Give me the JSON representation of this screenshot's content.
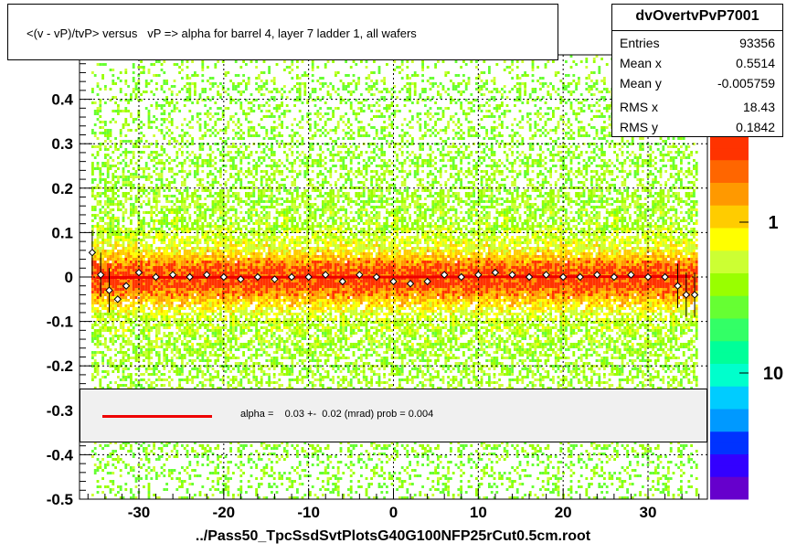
{
  "title": "<(v - vP)/tvP> versus   vP => alpha for barrel 4, layer 7 ladder 1, all wafers",
  "stats": {
    "name": "dvOvertvPvP7001",
    "rows": [
      {
        "key": "Entries",
        "value": "93356"
      },
      {
        "key": "Mean x",
        "value": "0.5514"
      },
      {
        "key": "Mean y",
        "value": "-0.005759"
      },
      {
        "key": "RMS x",
        "value": "18.43"
      },
      {
        "key": "RMS y",
        "value": "0.1842"
      }
    ]
  },
  "legend": {
    "fit_text": "alpha =    0.03 +-  0.02 (mrad) prob = 0.004",
    "line_color": "#ee0000"
  },
  "file_label": "../Pass50_TpcSsdSvtPlotsG40G100NFP25rCut0.5cm.root",
  "colors": {
    "palette_low_to_high": [
      "#6600cc",
      "#3300ff",
      "#0033ff",
      "#0099ff",
      "#00ccff",
      "#00ffcc",
      "#00ff99",
      "#33ff66",
      "#66ff33",
      "#99ff00",
      "#ccff33",
      "#ffff00",
      "#ffcc00",
      "#ff9900",
      "#ff6600",
      "#ff3300"
    ],
    "fit_line": "#ee0000"
  },
  "chart_data": {
    "type": "heatmap",
    "title": "<(v - vP)/tvP> versus   vP => alpha for barrel 4, layer 7 ladder 1, all wafers",
    "xlabel": "",
    "ylabel": "",
    "xlim": [
      -37,
      37
    ],
    "ylim": [
      -0.5,
      0.5
    ],
    "x_ticks": [
      -30,
      -20,
      -10,
      0,
      10,
      20,
      30
    ],
    "y_ticks": [
      -0.5,
      -0.4,
      -0.3,
      -0.2,
      -0.1,
      0,
      0.1,
      0.2,
      0.3,
      0.4
    ],
    "y_tick_labels": [
      "-0.5",
      "-0.4",
      "-0.3",
      "-0.2",
      "-0.1",
      "0",
      "0.1",
      "0.2",
      "0.3",
      "0.4"
    ],
    "z_scale": "log",
    "z_tick_labels": [
      "1",
      "10"
    ],
    "grid": true,
    "fit_line": {
      "slope_mrad": 0.03,
      "intercept": 0.0
    },
    "profile": {
      "x": [
        -35.5,
        -34.5,
        -33.5,
        -32.5,
        -31.5,
        -30,
        -28,
        -26,
        -24,
        -22,
        -20,
        -18,
        -16,
        -14,
        -12,
        -10,
        -8,
        -6,
        -4,
        -2,
        0,
        2,
        4,
        6,
        8,
        10,
        12,
        14,
        16,
        18,
        20,
        22,
        24,
        26,
        28,
        30,
        32,
        33.5,
        34.5,
        35.5
      ],
      "y": [
        0.055,
        0.005,
        -0.03,
        -0.05,
        -0.02,
        0.01,
        0.0,
        0.005,
        0.0,
        0.005,
        0.0,
        -0.005,
        0.0,
        -0.005,
        0.0,
        0.0,
        0.005,
        -0.01,
        0.005,
        0.0,
        -0.01,
        -0.015,
        -0.01,
        0.005,
        0.0,
        0.005,
        0.01,
        0.005,
        0.0,
        0.005,
        0.0,
        0.0,
        0.005,
        0.0,
        0.005,
        0.0,
        0.0,
        -0.02,
        -0.04,
        -0.04
      ]
    }
  }
}
